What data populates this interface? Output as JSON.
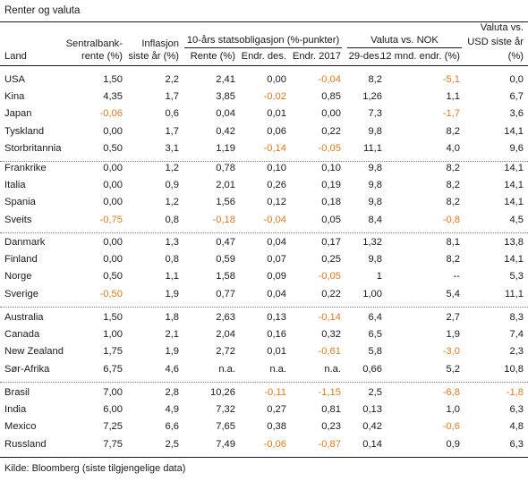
{
  "title": "Renter og valuta",
  "headers": {
    "land": "Land",
    "sentralbank_1": "Sentralbank-",
    "sentralbank_2": "rente (%)",
    "inflasjon_1": "Inflasjon",
    "inflasjon_2": "siste år (%)",
    "statsobl_group": "10-års statsobligasjon (%-punkter)",
    "rente": "Rente (%)",
    "endr_des": "Endr. des.",
    "endr_2017": "Endr. 2017",
    "valuta_group": "Valuta vs. NOK",
    "d29des": "29-des.",
    "m12": "12 mnd. endr. (%)",
    "usd_1": "Valuta vs.",
    "usd_2": "USD siste år",
    "usd_3": "(%)"
  },
  "groups": [
    [
      [
        "USA",
        "1,50",
        "2,2",
        "2,41",
        "0,00",
        "-0,04",
        "8,2",
        "-5,1",
        "0,0"
      ],
      [
        "Kina",
        "4,35",
        "1,7",
        "3,85",
        "-0,02",
        "0,85",
        "1,26",
        "1,1",
        "6,7"
      ],
      [
        "Japan",
        "-0,06",
        "0,6",
        "0,04",
        "0,01",
        "0,00",
        "7,3",
        "-1,7",
        "3,6"
      ],
      [
        "Tyskland",
        "0,00",
        "1,7",
        "0,42",
        "0,06",
        "0,22",
        "9,8",
        "8,2",
        "14,1"
      ],
      [
        "Storbritannia",
        "0,50",
        "3,1",
        "1,19",
        "-0,14",
        "-0,05",
        "11,1",
        "4,0",
        "9,6"
      ]
    ],
    [
      [
        "Frankrike",
        "0,00",
        "1,2",
        "0,78",
        "0,10",
        "0,10",
        "9,8",
        "8,2",
        "14,1"
      ],
      [
        "Italia",
        "0,00",
        "0,9",
        "2,01",
        "0,26",
        "0,19",
        "9,8",
        "8,2",
        "14,1"
      ],
      [
        "Spania",
        "0,00",
        "1,2",
        "1,56",
        "0,12",
        "0,18",
        "9,8",
        "8,2",
        "14,1"
      ],
      [
        "Sveits",
        "-0,75",
        "0,8",
        "-0,18",
        "-0,04",
        "0,05",
        "8,4",
        "-0,8",
        "4,5"
      ]
    ],
    [
      [
        "Danmark",
        "0,00",
        "1,3",
        "0,47",
        "0,04",
        "0,17",
        "1,32",
        "8,1",
        "13,8"
      ],
      [
        "Finland",
        "0,00",
        "0,8",
        "0,59",
        "0,07",
        "0,25",
        "9,8",
        "8,2",
        "14,1"
      ],
      [
        "Norge",
        "0,50",
        "1,1",
        "1,58",
        "0,09",
        "-0,05",
        "1",
        "--",
        "5,3"
      ],
      [
        "Sverige",
        "-0,50",
        "1,9",
        "0,77",
        "0,04",
        "0,22",
        "1,00",
        "5,4",
        "11,1"
      ]
    ],
    [
      [
        "Australia",
        "1,50",
        "1,8",
        "2,63",
        "0,13",
        "-0,14",
        "6,4",
        "2,7",
        "8,3"
      ],
      [
        "Canada",
        "1,00",
        "2,1",
        "2,04",
        "0,16",
        "0,32",
        "6,5",
        "1,9",
        "7,4"
      ],
      [
        "New Zealand",
        "1,75",
        "1,9",
        "2,72",
        "0,01",
        "-0,61",
        "5,8",
        "-3,0",
        "2,3"
      ],
      [
        "Sør-Afrika",
        "6,75",
        "4,6",
        "n.a.",
        "n.a.",
        "n.a.",
        "0,66",
        "5,2",
        "10,8"
      ]
    ],
    [
      [
        "Brasil",
        "7,00",
        "2,8",
        "10,26",
        "-0,11",
        "-1,15",
        "2,5",
        "-6,8",
        "-1,8"
      ],
      [
        "India",
        "6,00",
        "4,9",
        "7,32",
        "0,27",
        "0,81",
        "0,13",
        "1,0",
        "6,3"
      ],
      [
        "Mexico",
        "7,25",
        "6,6",
        "7,65",
        "0,38",
        "0,23",
        "0,42",
        "-0,6",
        "4,8"
      ],
      [
        "Russland",
        "7,75",
        "2,5",
        "7,49",
        "-0,06",
        "-0,87",
        "0,14",
        "0,9",
        "6,3"
      ]
    ]
  ],
  "footer": "Kilde: Bloomberg (siste tilgjengelige data)",
  "colors": {
    "negative": "#e07a1f",
    "text": "#1a1a1a"
  }
}
